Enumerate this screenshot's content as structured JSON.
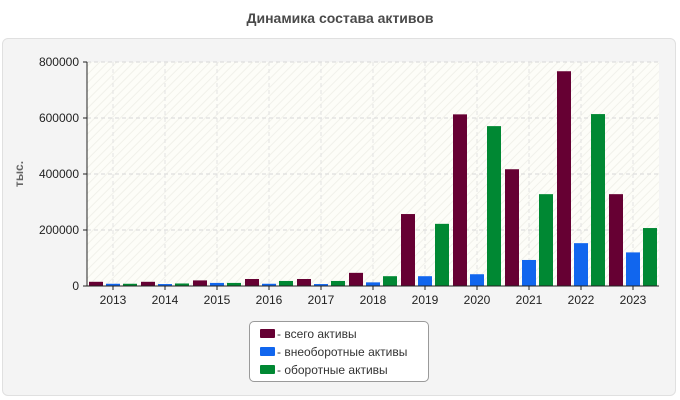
{
  "title": "Динамика состава активов",
  "chart_data": {
    "type": "bar",
    "title": "Динамика состава активов",
    "xlabel": "",
    "ylabel": "тыс.",
    "categories": [
      "2013",
      "2014",
      "2015",
      "2016",
      "2017",
      "2018",
      "2019",
      "2020",
      "2021",
      "2022",
      "2023"
    ],
    "series": [
      {
        "name": "- всего активы",
        "color": "#660033",
        "values": [
          15000,
          15000,
          20000,
          25000,
          25000,
          47000,
          257000,
          613000,
          417000,
          767000,
          328000
        ]
      },
      {
        "name": "- внеоборотные активы",
        "color": "#1166ee",
        "values": [
          8000,
          7000,
          11000,
          8000,
          7000,
          13000,
          35000,
          42000,
          93000,
          153000,
          120000
        ]
      },
      {
        "name": "- оборотные активы",
        "color": "#008833",
        "values": [
          8000,
          9000,
          11000,
          18000,
          18000,
          35000,
          222000,
          571000,
          328000,
          614000,
          207000
        ]
      }
    ],
    "ylim": [
      0,
      800000
    ],
    "yticks": [
      0,
      200000,
      400000,
      600000,
      800000
    ],
    "grid": true,
    "legend_position": "bottom"
  }
}
